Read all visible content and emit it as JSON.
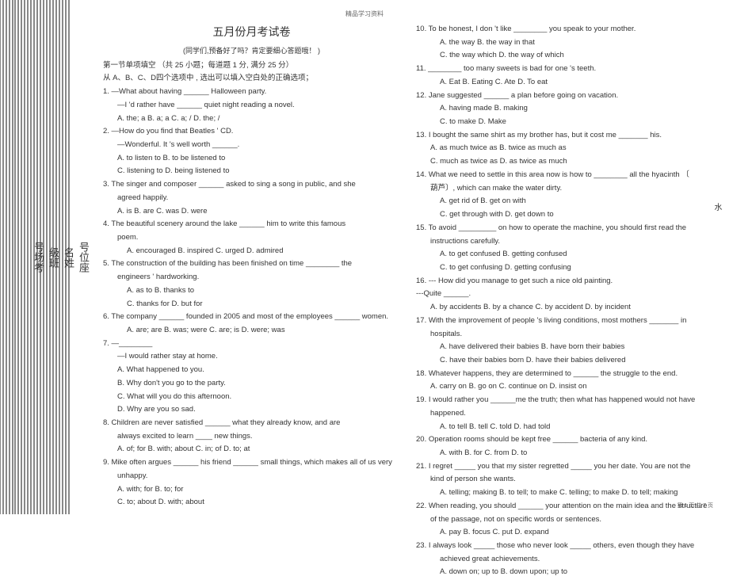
{
  "header_strip": "精品学习资料",
  "side": {
    "seat": "号位座",
    "name": "名姓",
    "class": "级班",
    "exam": "号场考"
  },
  "title": "五月份月考试卷",
  "subtitle": "(同学们,预备好了吗？肯定要细心答题哦！    )",
  "section_head": "第一节单项填空    （共 25 小题；每道题  1 分, 满分 25 分）",
  "section_instr": "从 A、B、C、D四个选项中 , 选出可以填入空白处的正确选项；",
  "left": [
    {
      "n": "1.",
      "t": "—What about having ______ Halloween party."
    },
    {
      "t": "—I 'd rather have ______ quiet night reading a novel.",
      "cls": "indent"
    },
    {
      "t": "A. the; a    B. a; a    C. a; /    D. the; /",
      "cls": "indent"
    },
    {
      "n": "2.",
      "t": "—How do you find that Beatles    ' CD."
    },
    {
      "t": "—Wonderful. It 's well worth ______.",
      "cls": "indent"
    },
    {
      "t": "A. to listen to    B. to be listened to",
      "cls": "indent"
    },
    {
      "t": "C. listening to    D. being listened to",
      "cls": "indent"
    },
    {
      "n": "3.",
      "t": "The singer and composer ______ asked to sing a song in public, and she"
    },
    {
      "t": "agreed happily.",
      "cls": "indent"
    },
    {
      "t": "A. is    B. are    C. was    D. were",
      "cls": "indent"
    },
    {
      "n": "4.",
      "t": "The beautiful scenery around the lake ______ him to write this famous"
    },
    {
      "t": "poem.",
      "cls": "indent"
    },
    {
      "t": "A. encouraged    B. inspired             C. urged    D. admired",
      "cls": "indent2"
    },
    {
      "n": "5.",
      "t": "The construction of the building has been finished on time ________ the"
    },
    {
      "t": "engineers '  hardworking.",
      "cls": "indent"
    },
    {
      "t": "A. as to       B. thanks to",
      "cls": "indent2"
    },
    {
      "t": "C. thanks for    D. but for",
      "cls": "indent2"
    },
    {
      "n": "6.",
      "t": "The company ______ founded in 2005 and most of the employees ______ women."
    },
    {
      "t": "A. are; are    B. was; were                        C. are; is    D. were; was",
      "cls": "indent2"
    },
    {
      "n": "7.",
      "t": "—________"
    },
    {
      "t": "—I would rather stay at home.",
      "cls": "indent"
    },
    {
      "t": "A. What happened to you.",
      "cls": "indent"
    },
    {
      "t": "B. Why don't you go to the party.",
      "cls": "indent"
    },
    {
      "t": "C. What will you do this afternoon.",
      "cls": "indent"
    },
    {
      "t": "D. Why are you so sad.",
      "cls": "indent"
    },
    {
      "n": "8.",
      "t": "Children are never satisfied ______ what they already know, and are"
    },
    {
      "t": "always excited to learn ____ new things.",
      "cls": "indent"
    },
    {
      "t": "A. of; for    B. with; about    C. in; of      D. to; at",
      "cls": "indent"
    },
    {
      "n": "9.",
      "t": "Mike often argues ______ his friend        ______ small things,    which makes all    of us very"
    },
    {
      "t": "unhappy.",
      "cls": "indent"
    },
    {
      "t": "A. with; for     B. to; for",
      "cls": "indent"
    },
    {
      "t": "C. to; about    D. with; about",
      "cls": "indent"
    }
  ],
  "right": [
    {
      "n": "10.",
      "t": "To be honest, I don   't like ________ you speak to your mother."
    },
    {
      "t": "A. the way       B. the way in that",
      "cls": "indent2"
    },
    {
      "t": "C. the way which    D. the way of which",
      "cls": "indent2"
    },
    {
      "n": "11.",
      "t": "________ too many sweets is bad for one      's teeth."
    },
    {
      "t": "A. Eat    B. Eating    C. Ate    D. To eat",
      "cls": "indent2"
    },
    {
      "n": "12.",
      "t": "Jane suggested ______ a plan before going on vacation."
    },
    {
      "t": "A. having made       B. making",
      "cls": "indent2"
    },
    {
      "t": "C. to make           D. Make",
      "cls": "indent2"
    },
    {
      "n": "13.",
      "t": "I bought the same shirt as my brother has, but it cost me _______ his."
    },
    {
      "t": "A. as much twice as    B. twice as much as",
      "cls": "indent"
    },
    {
      "t": "C. much as twice as    D. as twice as much",
      "cls": "indent"
    },
    {
      "n": "14.",
      "t": "What we need to settle in this area now is how to ________ all the hyacinth  〔"
    },
    {
      "t": "葫芦〕, which can make the water dirty.",
      "cls": "indent"
    },
    {
      "t": "A. get rid of      B. get on with",
      "cls": "indent2"
    },
    {
      "t": "C. get through with    D. get down to",
      "cls": "indent2"
    },
    {
      "n": "15.",
      "t": "To avoid _________ on how to operate the machine, you should first read the"
    },
    {
      "t": "instructions carefully.",
      "cls": "indent"
    },
    {
      "t": "A. to get confused    B. getting confused",
      "cls": "indent2"
    },
    {
      "t": "C. to get confusing    D. getting confusing",
      "cls": "indent2"
    },
    {
      "n": "16.",
      "t": "--- How did you manage to get such a nice old painting."
    },
    {
      "t": "---Quite ______.",
      "cls": ""
    },
    {
      "t": "A. by accidents    B. by a chance    C. by accident    D. by incident",
      "cls": "indent"
    },
    {
      "n": "17.",
      "t": "With the improvement of people    's living conditions, most mothers _______ in"
    },
    {
      "t": "hospitals.",
      "cls": "indent"
    },
    {
      "t": "A. have delivered their babies     B. have born their babies",
      "cls": "indent2"
    },
    {
      "t": "C. have their babies born      D. have their babies delivered",
      "cls": "indent2"
    },
    {
      "n": "18.",
      "t": "Whatever happens, they are determined to ______ the struggle to the end."
    },
    {
      "t": "A. carry on    B. go on    C. continue on    D. insist on",
      "cls": "indent"
    },
    {
      "n": "19.",
      "t": "I would rather you ______me the truth; then what has happened would not have"
    },
    {
      "t": "happened.",
      "cls": "indent"
    },
    {
      "t": "A. to tell    B. tell    C. told    D. had told",
      "cls": "indent2"
    },
    {
      "n": "20.",
      "t": "Operation rooms should be kept free ______ bacteria of any kind."
    },
    {
      "t": "A. with    B. for    C. from    D. to",
      "cls": "indent2"
    },
    {
      "n": "21.",
      "t": "I regret _____ you that my sister regretted _____ you her date. You are not the"
    },
    {
      "t": "kind of person she wants.",
      "cls": "indent"
    },
    {
      "t": "A. telling;    making  B. to tell;    to make  C. telling;    to make  D. to tell;    making",
      "cls": "indent2"
    },
    {
      "n": "22.",
      "t": "When reading,    you should ______ your attention    on the main idea and the structure"
    },
    {
      "t": "of the passage, not on specific words or sentences.",
      "cls": "indent"
    },
    {
      "t": "A. pay    B. focus    C. put    D. expand",
      "cls": "indent2"
    },
    {
      "n": " 23.",
      "t": "I always look _____ those who never look _____ others, even though they have"
    },
    {
      "t": "achieved great achievements.",
      "cls": "indent2"
    },
    {
      "t": "A. down on; up to    B. down upon; up to",
      "cls": "indent2"
    }
  ],
  "right_note": "水",
  "footer": "第 1 页,共 7 页",
  "footer_left": ""
}
